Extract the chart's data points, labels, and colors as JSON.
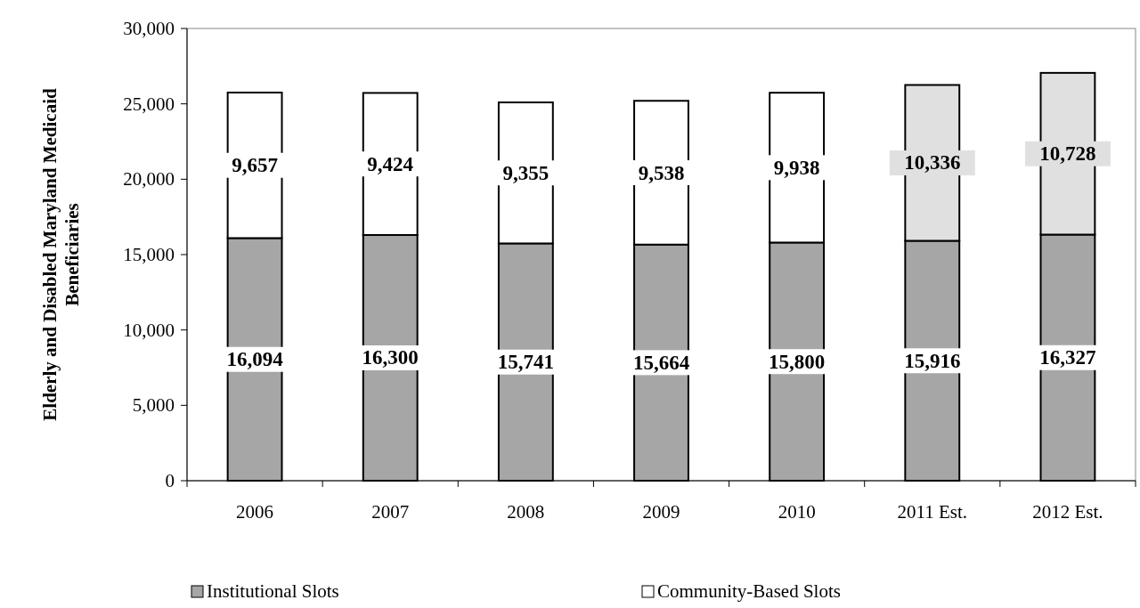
{
  "chart_data": {
    "type": "bar",
    "stacked": true,
    "ylabel": "Elderly and Disabled Maryland Medicaid Beneficiaries",
    "categories": [
      "2006",
      "2007",
      "2008",
      "2009",
      "2010",
      "2011 Est.",
      "2012 Est."
    ],
    "series": [
      {
        "name": "Institutional Slots",
        "color": "#a6a6a6",
        "values": [
          16094,
          16300,
          15741,
          15664,
          15800,
          15916,
          16327
        ],
        "value_labels": [
          "16,094",
          "16,300",
          "15,741",
          "15,664",
          "15,800",
          "15,916",
          "16,327"
        ]
      },
      {
        "name": "Community-Based Slots",
        "color": "#ffffff",
        "colors": [
          "#ffffff",
          "#ffffff",
          "#ffffff",
          "#ffffff",
          "#ffffff",
          "#e0e0e0",
          "#e0e0e0"
        ],
        "values": [
          9657,
          9424,
          9355,
          9538,
          9938,
          10336,
          10728
        ],
        "value_labels": [
          "9,657",
          "9,424",
          "9,355",
          "9,538",
          "9,938",
          "10,336",
          "10,728"
        ]
      }
    ],
    "ylim": [
      0,
      30000
    ],
    "yticks": [
      {
        "value": 0,
        "label": "0"
      },
      {
        "value": 5000,
        "label": "5,000"
      },
      {
        "value": 10000,
        "label": "10,000"
      },
      {
        "value": 15000,
        "label": "15,000"
      },
      {
        "value": 20000,
        "label": "20,000"
      },
      {
        "value": 25000,
        "label": "25,000"
      },
      {
        "value": 30000,
        "label": "30,000"
      }
    ],
    "legend": "bottom"
  }
}
